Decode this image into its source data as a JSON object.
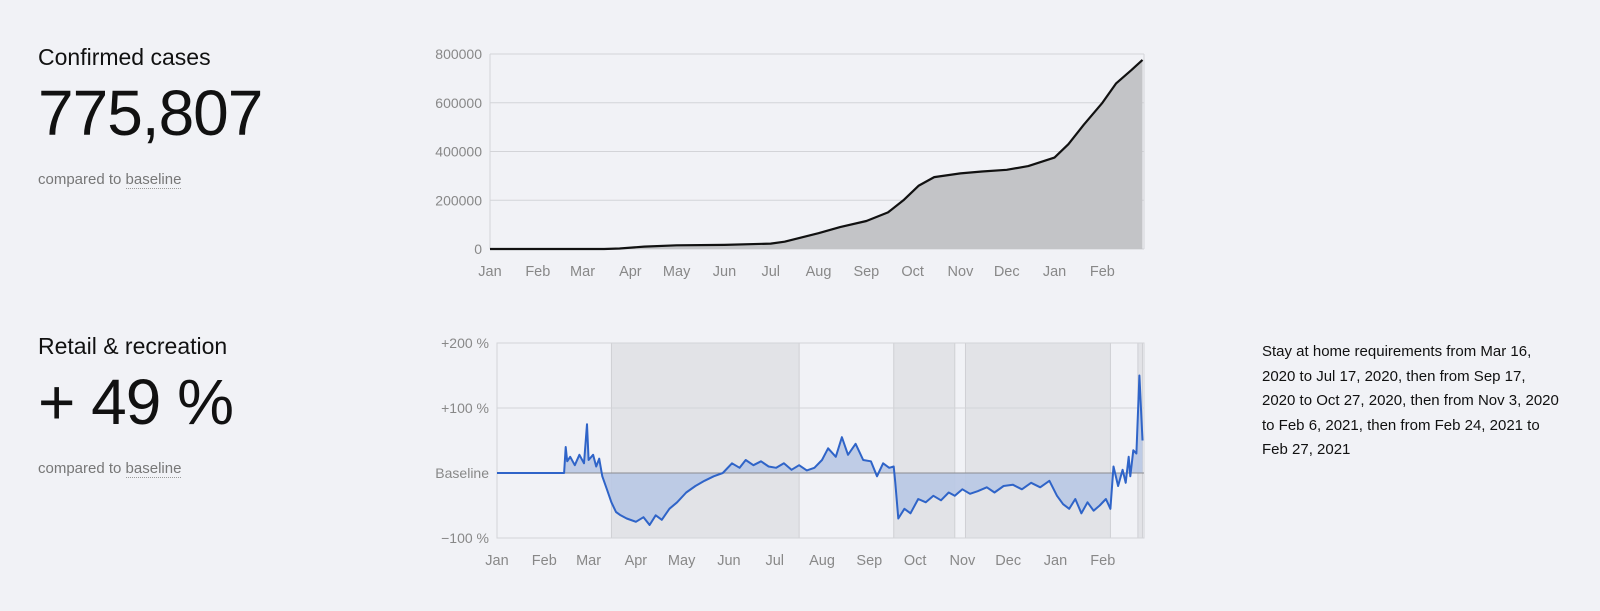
{
  "cases": {
    "title": "Confirmed cases",
    "value": "775,807",
    "sub_prefix": "compared to ",
    "sub_link": "baseline"
  },
  "retail": {
    "title": "Retail & recreation",
    "value": "+ 49 %",
    "sub_prefix": "compared to ",
    "sub_link": "baseline",
    "note": "Stay at home requirements from Mar 16, 2020 to Jul 17, 2020, then from Sep 17, 2020 to Oct 27, 2020, then from Nov 3, 2020 to Feb 6, 2021, then from Feb 24, 2021 to Feb 27, 2021"
  },
  "colors": {
    "cases_line": "#111111",
    "cases_fill": "#c3c4c7",
    "mobility_line": "#2f64c8",
    "mobility_fill": "#b9c8e4",
    "shade": "#e2e3e7",
    "grid": "#d3d4d8"
  },
  "chart_data": [
    {
      "type": "area",
      "title": "",
      "x_ticks": [
        "Jan",
        "Feb",
        "Mar",
        "Apr",
        "May",
        "Jun",
        "Jul",
        "Aug",
        "Sep",
        "Oct",
        "Nov",
        "Dec",
        "Jan",
        "Feb"
      ],
      "y_ticks": [
        "0",
        "200000",
        "400000",
        "600000",
        "800000"
      ],
      "ylim": [
        0,
        800000
      ],
      "x_range": [
        "2020-01-01",
        "2021-02-28"
      ],
      "grid": true,
      "series": [
        {
          "x": [
            "2020-01-01",
            "2020-03-15",
            "2020-03-25",
            "2020-04-10",
            "2020-05-01",
            "2020-06-01",
            "2020-07-01",
            "2020-07-10",
            "2020-08-01",
            "2020-08-15",
            "2020-09-01",
            "2020-09-15",
            "2020-09-25",
            "2020-10-05",
            "2020-10-15",
            "2020-11-01",
            "2020-11-15",
            "2020-12-01",
            "2020-12-15",
            "2021-01-01",
            "2021-01-10",
            "2021-01-20",
            "2021-02-01",
            "2021-02-10",
            "2021-02-20",
            "2021-02-27"
          ],
          "y": [
            0,
            0,
            2000,
            10000,
            15000,
            17000,
            22000,
            30000,
            65000,
            90000,
            115000,
            150000,
            200000,
            260000,
            295000,
            310000,
            318000,
            325000,
            340000,
            375000,
            430000,
            510000,
            600000,
            680000,
            735000,
            775807
          ]
        }
      ]
    },
    {
      "type": "line",
      "title": "",
      "x_ticks": [
        "Jan",
        "Feb",
        "Mar",
        "Apr",
        "May",
        "Jun",
        "Jul",
        "Aug",
        "Sep",
        "Oct",
        "Nov",
        "Dec",
        "Jan",
        "Feb"
      ],
      "y_ticks": [
        "−100 %",
        "Baseline",
        "+100 %",
        "+200 %"
      ],
      "ylim": [
        -100,
        200
      ],
      "x_range": [
        "2020-01-01",
        "2021-02-28"
      ],
      "grid": true,
      "shaded_ranges": [
        [
          "2020-03-16",
          "2020-07-17"
        ],
        [
          "2020-09-17",
          "2020-10-27"
        ],
        [
          "2020-11-03",
          "2021-02-06"
        ],
        [
          "2021-02-24",
          "2021-02-27"
        ]
      ],
      "series": [
        {
          "x": [
            "2020-01-01",
            "2020-02-14",
            "2020-02-15",
            "2020-02-16",
            "2020-02-18",
            "2020-02-21",
            "2020-02-24",
            "2020-02-27",
            "2020-02-29",
            "2020-03-01",
            "2020-03-04",
            "2020-03-06",
            "2020-03-08",
            "2020-03-10",
            "2020-03-13",
            "2020-03-16",
            "2020-03-19",
            "2020-03-22",
            "2020-03-26",
            "2020-04-01",
            "2020-04-06",
            "2020-04-10",
            "2020-04-14",
            "2020-04-18",
            "2020-04-23",
            "2020-04-28",
            "2020-05-04",
            "2020-05-10",
            "2020-05-16",
            "2020-05-22",
            "2020-05-28",
            "2020-06-03",
            "2020-06-08",
            "2020-06-12",
            "2020-06-17",
            "2020-06-22",
            "2020-06-27",
            "2020-07-02",
            "2020-07-07",
            "2020-07-12",
            "2020-07-17",
            "2020-07-22",
            "2020-07-27",
            "2020-08-01",
            "2020-08-05",
            "2020-08-10",
            "2020-08-14",
            "2020-08-18",
            "2020-08-23",
            "2020-08-28",
            "2020-09-02",
            "2020-09-06",
            "2020-09-10",
            "2020-09-14",
            "2020-09-17",
            "2020-09-18",
            "2020-09-20",
            "2020-09-24",
            "2020-09-28",
            "2020-10-03",
            "2020-10-08",
            "2020-10-13",
            "2020-10-18",
            "2020-10-23",
            "2020-10-27",
            "2020-11-01",
            "2020-11-06",
            "2020-11-11",
            "2020-11-17",
            "2020-11-22",
            "2020-11-28",
            "2020-12-04",
            "2020-12-10",
            "2020-12-16",
            "2020-12-22",
            "2020-12-28",
            "2021-01-02",
            "2021-01-06",
            "2021-01-10",
            "2021-01-14",
            "2021-01-18",
            "2021-01-22",
            "2021-01-26",
            "2021-01-30",
            "2021-02-03",
            "2021-02-06",
            "2021-02-08",
            "2021-02-11",
            "2021-02-14",
            "2021-02-16",
            "2021-02-18",
            "2021-02-19",
            "2021-02-21",
            "2021-02-23",
            "2021-02-25",
            "2021-02-27"
          ],
          "y": [
            0,
            0,
            40,
            18,
            25,
            12,
            28,
            15,
            75,
            20,
            28,
            10,
            22,
            -5,
            -25,
            -45,
            -60,
            -65,
            -70,
            -75,
            -68,
            -80,
            -65,
            -72,
            -55,
            -45,
            -30,
            -20,
            -12,
            -5,
            0,
            15,
            8,
            20,
            12,
            18,
            10,
            8,
            15,
            5,
            12,
            4,
            8,
            20,
            38,
            25,
            55,
            28,
            45,
            20,
            18,
            -5,
            15,
            8,
            10,
            -15,
            -70,
            -55,
            -62,
            -40,
            -45,
            -35,
            -42,
            -30,
            -35,
            -25,
            -32,
            -28,
            -22,
            -30,
            -20,
            -18,
            -25,
            -15,
            -22,
            -12,
            -35,
            -48,
            -55,
            -40,
            -62,
            -45,
            -58,
            -50,
            -40,
            -55,
            10,
            -20,
            5,
            -15,
            25,
            -5,
            35,
            30,
            150,
            50
          ],
          "note": "values approximate; daily series estimated from plot"
        }
      ]
    }
  ]
}
